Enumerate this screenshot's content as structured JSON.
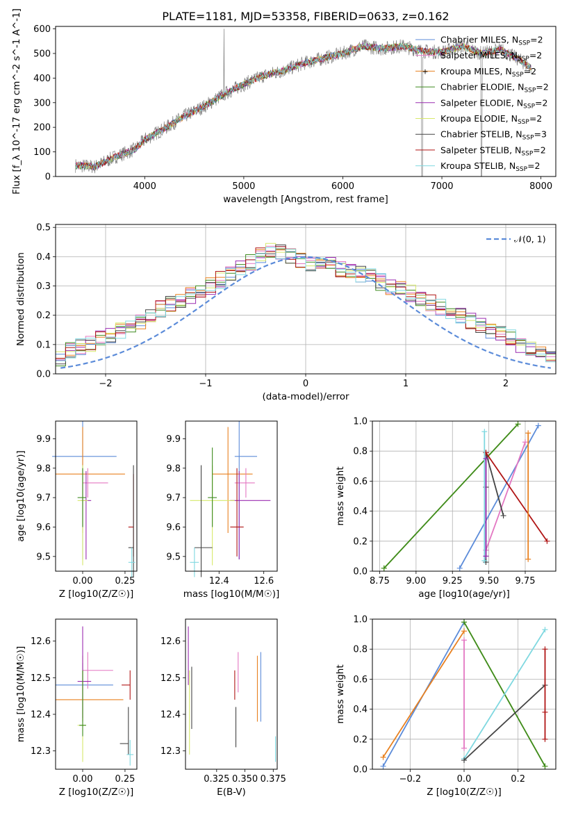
{
  "colors": {
    "chabrier_miles": "#5b8bd9",
    "salpeter_miles": "#e377c2",
    "kroupa_miles": "#e8801f",
    "chabrier_elodie": "#3d8a1e",
    "salpeter_elodie": "#9a2bb0",
    "kroupa_elodie": "#d6e86a",
    "chabrier_stelib": "#444444",
    "salpeter_stelib": "#b01515",
    "kroupa_stelib": "#7fd8e0",
    "data": "#808080",
    "gaussian": "#5b8bd9"
  },
  "chart_data": [
    {
      "type": "line",
      "title": "PLATE=1181, MJD=53358, FIBERID=0633, z=0.162",
      "xlabel": "wavelength [Angstrom, rest frame]",
      "ylabel": "Flux [f_λ 10^-17 erg cm^-2 s^-1 A^-1]",
      "xlim": [
        3100,
        8150
      ],
      "ylim": [
        0,
        610
      ],
      "xticks": [
        "4000",
        "5000",
        "6000",
        "7000",
        "8000"
      ],
      "yticks": [
        "0",
        "100",
        "200",
        "300",
        "400",
        "500",
        "600"
      ],
      "x": [
        3300,
        3500,
        3700,
        3900,
        4000,
        4200,
        4400,
        4600,
        4800,
        5000,
        5200,
        5400,
        5600,
        5800,
        6000,
        6200,
        6400,
        6600,
        6800,
        7000,
        7200,
        7400,
        7600,
        7800,
        7900
      ],
      "continuum_y": [
        45,
        40,
        80,
        110,
        150,
        195,
        245,
        285,
        335,
        375,
        410,
        430,
        460,
        480,
        500,
        530,
        520,
        530,
        510,
        505,
        530,
        500,
        515,
        470,
        440
      ],
      "legend": [
        "Chabrier MILES, N_SSP=2",
        "Salpeter MILES, N_SSP=2",
        "Kroupa MILES, N_SSP=2",
        "Chabrier ELODIE, N_SSP=2",
        "Salpeter ELODIE, N_SSP=2",
        "Kroupa ELODIE, N_SSP=2",
        "Chabrier STELIB, N_SSP=3",
        "Salpeter STELIB, N_SSP=2",
        "Kroupa STELIB, N_SSP=2"
      ],
      "legend_position": "right"
    },
    {
      "type": "histogram",
      "xlabel": "(data-model)/error",
      "ylabel": "Normed distribution",
      "xlim": [
        -2.5,
        2.5
      ],
      "ylim": [
        0,
        0.51
      ],
      "xticks": [
        "−2",
        "−1",
        "0",
        "1",
        "2"
      ],
      "yticks": [
        "0.0",
        "0.1",
        "0.2",
        "0.3",
        "0.4",
        "0.5"
      ],
      "bin_width": 0.1,
      "x_start": -2.5,
      "envelope_y": [
        0.055,
        0.08,
        0.09,
        0.1,
        0.12,
        0.13,
        0.145,
        0.16,
        0.18,
        0.2,
        0.22,
        0.235,
        0.25,
        0.27,
        0.285,
        0.3,
        0.32,
        0.34,
        0.36,
        0.38,
        0.4,
        0.42,
        0.42,
        0.4,
        0.39,
        0.38,
        0.38,
        0.37,
        0.36,
        0.35,
        0.34,
        0.33,
        0.315,
        0.3,
        0.29,
        0.275,
        0.26,
        0.245,
        0.23,
        0.215,
        0.195,
        0.18,
        0.165,
        0.15,
        0.135,
        0.12,
        0.1,
        0.085,
        0.07,
        0.055,
        0.04,
        0.03
      ],
      "gaussian_label": "𝒩(0, 1)",
      "legend_position": "top-right"
    },
    {
      "type": "scatter",
      "xlabel": "Z [log10(Z/Z☉)]",
      "ylabel": "age  [log10(age/yr)]",
      "xlim": [
        -0.16,
        0.32
      ],
      "ylim": [
        9.45,
        9.96
      ],
      "xticks": [
        "0.00",
        "0.25"
      ],
      "yticks": [
        "9.5",
        "9.6",
        "9.7",
        "9.8",
        "9.9"
      ],
      "series": [
        {
          "key": "chabrier_miles",
          "x": 0.0,
          "y": 9.84,
          "xerr": [
            0.18,
            0.2
          ],
          "yerr": [
            0.35,
            0.12
          ]
        },
        {
          "key": "kroupa_miles",
          "x": 0.0,
          "y": 9.78,
          "xerr": [
            0.16,
            0.25
          ],
          "yerr": [
            0.2,
            0.16
          ]
        },
        {
          "key": "salpeter_miles",
          "x": 0.03,
          "y": 9.75,
          "xerr": [
            0.03,
            0.12
          ],
          "yerr": [
            0.05,
            0.05
          ]
        },
        {
          "key": "salpeter_elodie",
          "x": 0.02,
          "y": 9.69,
          "xerr": [
            0.03,
            0.03
          ],
          "yerr": [
            0.2,
            0.1
          ]
        },
        {
          "key": "kroupa_elodie",
          "x": 0.0,
          "y": 9.69,
          "xerr": [
            0.03,
            0.03
          ],
          "yerr": [
            0.22,
            0.12
          ]
        },
        {
          "key": "chabrier_elodie",
          "x": 0.0,
          "y": 9.7,
          "xerr": [
            0.03,
            0.02
          ],
          "yerr": [
            0.1,
            0.1
          ]
        },
        {
          "key": "salpeter_stelib",
          "x": 0.3,
          "y": 9.6,
          "xerr": [
            0.03,
            0.0
          ],
          "yerr": [
            0.1,
            0.18
          ]
        },
        {
          "key": "chabrier_stelib",
          "x": 0.3,
          "y": 9.53,
          "xerr": [
            0.03,
            0.0
          ],
          "yerr": [
            0.1,
            0.28
          ]
        },
        {
          "key": "kroupa_stelib",
          "x": 0.29,
          "y": 9.48,
          "xerr": [
            0.02,
            0.02
          ],
          "yerr": [
            0.05,
            0.05
          ]
        }
      ]
    },
    {
      "type": "scatter",
      "xlabel": "mass [log10(M/M☉)]",
      "ylabel": "",
      "xlim": [
        12.25,
        12.66
      ],
      "ylim": [
        9.45,
        9.96
      ],
      "xticks": [
        "12.4",
        "12.6"
      ],
      "yticks": [
        "9.5",
        "9.6",
        "9.7",
        "9.8",
        "9.9"
      ],
      "series": [
        {
          "key": "chabrier_miles",
          "x": 12.49,
          "y": 9.84,
          "xerr": [
            0.02,
            0.08
          ],
          "yerr": [
            0.35,
            0.12
          ]
        },
        {
          "key": "kroupa_miles",
          "x": 12.44,
          "y": 9.78,
          "xerr": [
            0.07,
            0.11
          ],
          "yerr": [
            0.2,
            0.16
          ]
        },
        {
          "key": "salpeter_miles",
          "x": 12.52,
          "y": 9.75,
          "xerr": [
            0.05,
            0.04
          ],
          "yerr": [
            0.05,
            0.05
          ]
        },
        {
          "key": "salpeter_elodie",
          "x": 12.49,
          "y": 9.69,
          "xerr": [
            0.04,
            0.14
          ],
          "yerr": [
            0.2,
            0.1
          ]
        },
        {
          "key": "kroupa_elodie",
          "x": 12.37,
          "y": 9.69,
          "xerr": [
            0.1,
            0.1
          ],
          "yerr": [
            0.22,
            0.12
          ]
        },
        {
          "key": "chabrier_elodie",
          "x": 12.37,
          "y": 9.7,
          "xerr": [
            0.02,
            0.02
          ],
          "yerr": [
            0.1,
            0.17
          ]
        },
        {
          "key": "salpeter_stelib",
          "x": 12.48,
          "y": 9.6,
          "xerr": [
            0.03,
            0.03
          ],
          "yerr": [
            0.1,
            0.2
          ]
        },
        {
          "key": "chabrier_stelib",
          "x": 12.32,
          "y": 9.53,
          "xerr": [
            0.03,
            0.05
          ],
          "yerr": [
            0.1,
            0.28
          ]
        },
        {
          "key": "kroupa_stelib",
          "x": 12.29,
          "y": 9.48,
          "xerr": [
            0.02,
            0.02
          ],
          "yerr": [
            0.05,
            0.05
          ]
        }
      ]
    },
    {
      "type": "line",
      "xlabel": "age  [log10(age/yr)]",
      "ylabel": "mass weight",
      "xlim": [
        8.7,
        9.96
      ],
      "ylim": [
        0,
        1
      ],
      "xticks": [
        "8.75",
        "9.00",
        "9.25",
        "9.50",
        "9.75"
      ],
      "yticks": [
        "0.0",
        "0.2",
        "0.4",
        "0.6",
        "0.8",
        "1.0"
      ],
      "grid": true,
      "series": [
        {
          "key": "kroupa_elodie",
          "x": [
            8.78,
            9.7
          ],
          "y": [
            0.02,
            0.98
          ]
        },
        {
          "key": "chabrier_elodie",
          "x": [
            8.78,
            9.7
          ],
          "y": [
            0.02,
            0.98
          ]
        },
        {
          "key": "chabrier_miles",
          "x": [
            9.3,
            9.84
          ],
          "y": [
            0.02,
            0.97
          ]
        },
        {
          "key": "salpeter_miles",
          "x": [
            9.48,
            9.75
          ],
          "y": [
            0.14,
            0.86
          ]
        },
        {
          "key": "chabrier_stelib",
          "x": [
            9.48,
            9.48,
            9.48,
            9.6
          ],
          "y": [
            0.06,
            0.56,
            0.79,
            0.37
          ]
        },
        {
          "key": "salpeter_stelib",
          "x": [
            9.48,
            9.9
          ],
          "y": [
            0.79,
            0.2
          ]
        },
        {
          "key": "kroupa_miles",
          "x": [
            9.77,
            9.77
          ],
          "y": [
            0.08,
            0.92
          ]
        },
        {
          "key": "kroupa_stelib",
          "x": [
            9.47,
            9.47
          ],
          "y": [
            0.07,
            0.93
          ]
        },
        {
          "key": "salpeter_elodie",
          "x": [
            9.48,
            9.48
          ],
          "y": [
            0.1,
            0.75
          ]
        }
      ]
    },
    {
      "type": "scatter",
      "xlabel": "Z [log10(Z/Z☉)]",
      "ylabel": "mass [log10(M/M☉)]",
      "xlim": [
        -0.16,
        0.32
      ],
      "ylim": [
        12.25,
        12.66
      ],
      "xticks": [
        "0.00",
        "0.25"
      ],
      "yticks": [
        "12.3",
        "12.4",
        "12.5",
        "12.6"
      ],
      "series": [
        {
          "key": "chabrier_miles",
          "x": 0.0,
          "y": 12.48,
          "xerr": [
            0.16,
            0.18
          ],
          "yerr": [
            0.1,
            0.06
          ]
        },
        {
          "key": "kroupa_miles",
          "x": 0.0,
          "y": 12.44,
          "xerr": [
            0.16,
            0.24
          ],
          "yerr": [
            0.06,
            0.12
          ]
        },
        {
          "key": "salpeter_miles",
          "x": 0.03,
          "y": 12.52,
          "xerr": [
            0.03,
            0.15
          ],
          "yerr": [
            0.05,
            0.05
          ]
        },
        {
          "key": "salpeter_elodie",
          "x": 0.0,
          "y": 12.49,
          "xerr": [
            0.03,
            0.05
          ],
          "yerr": [
            0.1,
            0.15
          ]
        },
        {
          "key": "kroupa_elodie",
          "x": 0.0,
          "y": 12.37,
          "xerr": [
            0.03,
            0.02
          ],
          "yerr": [
            0.1,
            0.15
          ]
        },
        {
          "key": "chabrier_elodie",
          "x": 0.0,
          "y": 12.37,
          "xerr": [
            0.02,
            0.02
          ],
          "yerr": [
            0.03,
            0.15
          ]
        },
        {
          "key": "salpeter_stelib",
          "x": 0.28,
          "y": 12.48,
          "xerr": [
            0.05,
            0.0
          ],
          "yerr": [
            0.04,
            0.04
          ]
        },
        {
          "key": "chabrier_stelib",
          "x": 0.27,
          "y": 12.32,
          "xerr": [
            0.05,
            0.0
          ],
          "yerr": [
            0.03,
            0.1
          ]
        },
        {
          "key": "kroupa_stelib",
          "x": 0.28,
          "y": 12.29,
          "xerr": [
            0.02,
            0.02
          ],
          "yerr": [
            0.03,
            0.04
          ]
        }
      ]
    },
    {
      "type": "errorbar",
      "xlabel": "E(B-V)",
      "ylabel": "",
      "xlim": [
        0.2975,
        0.3785
      ],
      "ylim": [
        12.25,
        12.66
      ],
      "xticks": [
        "0.325",
        "0.350",
        "0.375"
      ],
      "yticks": [
        "12.3",
        "12.4",
        "12.5",
        "12.6"
      ],
      "series": [
        {
          "key": "salpeter_elodie",
          "x": 0.3,
          "ylo": 12.48,
          "yhi": 12.64
        },
        {
          "key": "kroupa_elodie",
          "x": 0.301,
          "ylo": 12.29,
          "yhi": 12.52
        },
        {
          "key": "chabrier_stelib",
          "x": 0.303,
          "ylo": 12.36,
          "yhi": 12.53
        },
        {
          "key": "salpeter_stelib",
          "x": 0.341,
          "ylo": 12.44,
          "yhi": 12.52
        },
        {
          "key": "chabrier_stelib",
          "x": 0.342,
          "ylo": 12.31,
          "yhi": 12.42
        },
        {
          "key": "salpeter_miles",
          "x": 0.344,
          "ylo": 12.46,
          "yhi": 12.57
        },
        {
          "key": "kroupa_miles",
          "x": 0.361,
          "ylo": 12.38,
          "yhi": 12.56
        },
        {
          "key": "chabrier_miles",
          "x": 0.364,
          "ylo": 12.38,
          "yhi": 12.57
        },
        {
          "key": "kroupa_stelib",
          "x": 0.377,
          "ylo": 12.27,
          "yhi": 12.34
        }
      ]
    },
    {
      "type": "line",
      "xlabel": "Z [log10(Z/Z☉)]",
      "ylabel": "mass weight",
      "xlim": [
        -0.34,
        0.34
      ],
      "ylim": [
        0,
        1
      ],
      "xticks": [
        "−0.2",
        "0.0",
        "0.2"
      ],
      "yticks": [
        "0.0",
        "0.2",
        "0.4",
        "0.6",
        "0.8",
        "1.0"
      ],
      "grid": true,
      "series": [
        {
          "key": "chabrier_miles",
          "x": [
            -0.3,
            0.0
          ],
          "y": [
            0.02,
            0.98
          ]
        },
        {
          "key": "kroupa_miles",
          "x": [
            -0.3,
            0.0
          ],
          "y": [
            0.08,
            0.92
          ]
        },
        {
          "key": "salpeter_miles",
          "x": [
            0.0,
            0.0
          ],
          "y": [
            0.14,
            0.86
          ]
        },
        {
          "key": "kroupa_elodie",
          "x": [
            0.0,
            0.3
          ],
          "y": [
            0.98,
            0.02
          ]
        },
        {
          "key": "chabrier_elodie",
          "x": [
            0.0,
            0.3
          ],
          "y": [
            0.98,
            0.02
          ]
        },
        {
          "key": "kroupa_stelib",
          "x": [
            0.0,
            0.3
          ],
          "y": [
            0.07,
            0.93
          ]
        },
        {
          "key": "chabrier_stelib",
          "x": [
            0.0,
            0.3
          ],
          "y": [
            0.06,
            0.56
          ]
        },
        {
          "key": "salpeter_stelib",
          "x": [
            0.3,
            0.3,
            0.3
          ],
          "y": [
            0.2,
            0.38,
            0.8
          ]
        }
      ]
    }
  ]
}
